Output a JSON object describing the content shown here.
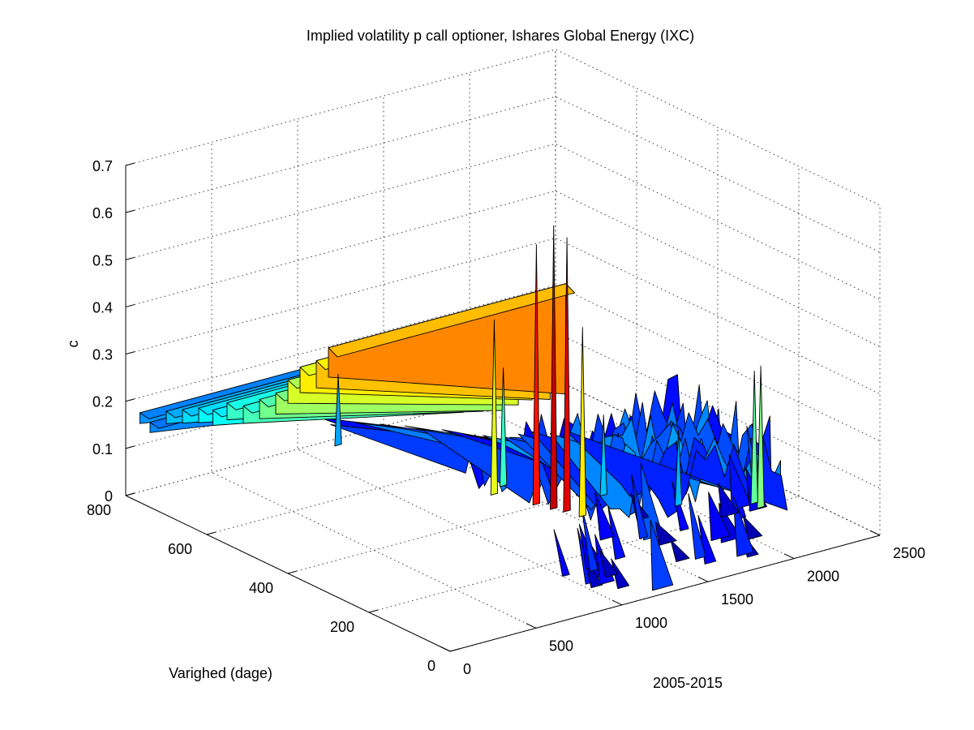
{
  "chart_data": {
    "type": "surface3d",
    "title": "Implied volatility p call optioner, Ishares Global Energy (IXC)",
    "xlabel": "2005-2015",
    "ylabel": "Varighed (dage)",
    "zlabel": "c",
    "xlim": [
      0,
      2500
    ],
    "ylim": [
      0,
      800
    ],
    "zlim": [
      0,
      0.7
    ],
    "x_ticks": [
      "0",
      "500",
      "1000",
      "1500",
      "2000",
      "2500"
    ],
    "y_ticks": [
      "0",
      "200",
      "400",
      "600",
      "800"
    ],
    "z_ticks": [
      "0",
      "0.1",
      "0.2",
      "0.3",
      "0.4",
      "0.5",
      "0.6",
      "0.7"
    ],
    "grid": true,
    "colormap": "jet",
    "ridges": [
      {
        "maturity": 765,
        "level": 0.19,
        "x_end": 1050
      },
      {
        "maturity": 740,
        "level": 0.18,
        "x_end": 1050
      },
      {
        "maturity": 700,
        "level": 0.22,
        "x_end": 1100
      },
      {
        "maturity": 660,
        "level": 0.24,
        "x_end": 1150
      },
      {
        "maturity": 620,
        "level": 0.26,
        "x_end": 1200
      },
      {
        "maturity": 585,
        "level": 0.27,
        "x_end": 1220
      },
      {
        "maturity": 550,
        "level": 0.3,
        "x_end": 1250
      },
      {
        "maturity": 510,
        "level": 0.31,
        "x_end": 1280
      },
      {
        "maturity": 470,
        "level": 0.34,
        "x_end": 1300
      },
      {
        "maturity": 430,
        "level": 0.37,
        "x_end": 1320
      },
      {
        "maturity": 400,
        "level": 0.41,
        "x_end": 1340
      },
      {
        "maturity": 370,
        "level": 0.45,
        "x_end": 1350
      },
      {
        "maturity": 330,
        "level": 0.48,
        "x_end": 1360
      },
      {
        "maturity": 300,
        "level": 0.52,
        "x_end": 1380
      }
    ],
    "spikes": [
      {
        "x": 1200,
        "y": 400,
        "z": 0.42
      },
      {
        "x": 1280,
        "y": 330,
        "z": 0.6
      },
      {
        "x": 1310,
        "y": 300,
        "z": 0.65
      },
      {
        "x": 1340,
        "y": 280,
        "z": 0.63
      },
      {
        "x": 1360,
        "y": 250,
        "z": 0.45
      },
      {
        "x": 1300,
        "y": 420,
        "z": 0.3
      },
      {
        "x": 2090,
        "y": 120,
        "z": 0.35
      },
      {
        "x": 2100,
        "y": 140,
        "z": 0.33
      },
      {
        "x": 1000,
        "y": 700,
        "z": 0.2
      },
      {
        "x": 1600,
        "y": 300,
        "z": 0.22
      },
      {
        "x": 1800,
        "y": 200,
        "z": 0.21
      }
    ]
  }
}
